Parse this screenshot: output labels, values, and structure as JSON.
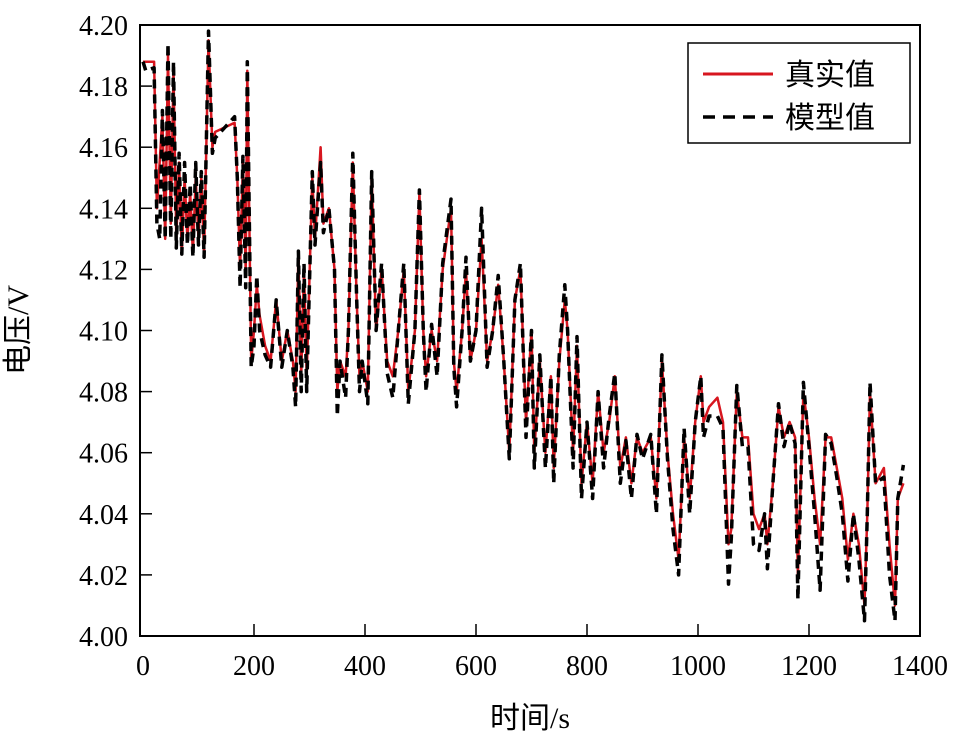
{
  "chart_data": {
    "type": "line",
    "title": "",
    "xlabel": "时间/s",
    "ylabel": "电压/V",
    "xlim": [
      0,
      1400
    ],
    "ylim": [
      4.0,
      4.2
    ],
    "xticks": [
      "0",
      "200",
      "400",
      "600",
      "800",
      "1000",
      "1200",
      "1400"
    ],
    "yticks": [
      "4.00",
      "4.02",
      "4.04",
      "4.06",
      "4.08",
      "4.10",
      "4.12",
      "4.14",
      "4.16",
      "4.18",
      "4.20"
    ],
    "grid": false,
    "legend_position": "top-right",
    "series": [
      {
        "name": "真实值",
        "color": "#d7161f",
        "style": "solid",
        "x": [
          0,
          20,
          25,
          35,
          40,
          45,
          50,
          55,
          60,
          65,
          70,
          75,
          80,
          85,
          90,
          95,
          100,
          105,
          110,
          118,
          125,
          130,
          165,
          170,
          175,
          180,
          185,
          188,
          195,
          200,
          205,
          210,
          220,
          230,
          240,
          250,
          260,
          270,
          275,
          280,
          285,
          290,
          295,
          305,
          310,
          320,
          325,
          335,
          345,
          350,
          355,
          365,
          370,
          378,
          385,
          390,
          395,
          405,
          412,
          420,
          430,
          440,
          450,
          460,
          470,
          478,
          490,
          498,
          505,
          510,
          520,
          530,
          540,
          555,
          560,
          565,
          575,
          582,
          590,
          600,
          610,
          620,
          630,
          640,
          650,
          660,
          670,
          680,
          690,
          700,
          705,
          715,
          725,
          735,
          740,
          750,
          760,
          765,
          775,
          782,
          790,
          800,
          810,
          820,
          830,
          840,
          850,
          860,
          870,
          880,
          890,
          900,
          915,
          925,
          935,
          945,
          955,
          965,
          975,
          985,
          995,
          1005,
          1010,
          1020,
          1035,
          1045,
          1055,
          1060,
          1070,
          1080,
          1090,
          1100,
          1110,
          1120,
          1125,
          1135,
          1145,
          1155,
          1165,
          1175,
          1180,
          1190,
          1200,
          1210,
          1220,
          1230,
          1240,
          1250,
          1260,
          1270,
          1280,
          1290,
          1300,
          1305,
          1310,
          1320,
          1335,
          1345,
          1355,
          1360,
          1370
        ],
        "y": [
          4.188,
          4.188,
          4.14,
          4.17,
          4.13,
          4.19,
          4.135,
          4.185,
          4.13,
          4.155,
          4.125,
          4.15,
          4.13,
          4.145,
          4.125,
          4.15,
          4.13,
          4.15,
          4.125,
          4.195,
          4.16,
          4.165,
          4.168,
          4.15,
          4.12,
          4.155,
          4.12,
          4.185,
          4.09,
          4.1,
          4.115,
          4.105,
          4.095,
          4.09,
          4.11,
          4.09,
          4.1,
          4.09,
          4.08,
          4.125,
          4.085,
          4.12,
          4.085,
          4.15,
          4.13,
          4.16,
          4.135,
          4.14,
          4.12,
          4.08,
          4.09,
          4.085,
          4.1,
          4.155,
          4.11,
          4.085,
          4.09,
          4.08,
          4.15,
          4.1,
          4.12,
          4.09,
          4.085,
          4.1,
          4.12,
          4.08,
          4.1,
          4.145,
          4.1,
          4.085,
          4.1,
          4.09,
          4.12,
          4.14,
          4.09,
          4.08,
          4.1,
          4.12,
          4.09,
          4.1,
          4.13,
          4.09,
          4.1,
          4.115,
          4.09,
          4.06,
          4.11,
          4.12,
          4.07,
          4.1,
          4.06,
          4.09,
          4.06,
          4.085,
          4.055,
          4.09,
          4.11,
          4.1,
          4.06,
          4.095,
          4.05,
          4.07,
          4.05,
          4.08,
          4.06,
          4.07,
          4.085,
          4.055,
          4.065,
          4.05,
          4.065,
          4.06,
          4.065,
          4.045,
          4.09,
          4.06,
          4.04,
          4.025,
          4.065,
          4.045,
          4.07,
          4.085,
          4.07,
          4.075,
          4.078,
          4.07,
          4.03,
          4.035,
          4.08,
          4.065,
          4.065,
          4.04,
          4.035,
          4.04,
          4.03,
          4.05,
          4.075,
          4.065,
          4.07,
          4.065,
          4.02,
          4.08,
          4.065,
          4.045,
          4.03,
          4.065,
          4.065,
          4.055,
          4.045,
          4.025,
          4.04,
          4.03,
          4.01,
          4.04,
          4.08,
          4.05,
          4.055,
          4.03,
          4.01,
          4.045,
          4.05
        ]
      },
      {
        "name": "模型值",
        "color": "#000000",
        "style": "dashed",
        "x": [
          0,
          5,
          20,
          25,
          30,
          35,
          40,
          45,
          50,
          55,
          60,
          65,
          70,
          75,
          80,
          85,
          90,
          95,
          100,
          105,
          110,
          118,
          125,
          130,
          165,
          170,
          175,
          180,
          185,
          188,
          195,
          200,
          205,
          210,
          220,
          230,
          240,
          250,
          260,
          270,
          275,
          280,
          285,
          290,
          295,
          305,
          310,
          320,
          325,
          335,
          345,
          350,
          355,
          365,
          370,
          378,
          385,
          390,
          395,
          405,
          412,
          420,
          430,
          440,
          450,
          460,
          470,
          478,
          490,
          498,
          505,
          510,
          520,
          530,
          540,
          555,
          560,
          565,
          575,
          582,
          590,
          600,
          610,
          620,
          630,
          640,
          650,
          660,
          670,
          680,
          690,
          700,
          705,
          715,
          725,
          735,
          740,
          750,
          760,
          765,
          775,
          782,
          790,
          800,
          810,
          820,
          830,
          840,
          850,
          860,
          870,
          880,
          890,
          900,
          915,
          925,
          935,
          945,
          955,
          965,
          975,
          985,
          995,
          1005,
          1010,
          1020,
          1035,
          1045,
          1055,
          1060,
          1070,
          1080,
          1090,
          1100,
          1110,
          1120,
          1125,
          1135,
          1145,
          1155,
          1165,
          1175,
          1180,
          1190,
          1200,
          1210,
          1220,
          1230,
          1240,
          1250,
          1260,
          1270,
          1280,
          1290,
          1300,
          1305,
          1310,
          1320,
          1335,
          1345,
          1355,
          1360,
          1370
        ],
        "y": [
          4.188,
          4.185,
          4.186,
          4.135,
          4.13,
          4.172,
          4.13,
          4.194,
          4.13,
          4.188,
          4.127,
          4.158,
          4.125,
          4.155,
          4.128,
          4.148,
          4.124,
          4.155,
          4.128,
          4.152,
          4.124,
          4.198,
          4.158,
          4.163,
          4.17,
          4.15,
          4.114,
          4.157,
          4.114,
          4.188,
          4.088,
          4.095,
          4.118,
          4.1,
          4.092,
          4.088,
          4.11,
          4.088,
          4.1,
          4.088,
          4.075,
          4.126,
          4.08,
          4.122,
          4.08,
          4.152,
          4.128,
          4.155,
          4.132,
          4.14,
          4.12,
          4.072,
          4.09,
          4.078,
          4.1,
          4.158,
          4.11,
          4.08,
          4.09,
          4.076,
          4.152,
          4.1,
          4.122,
          4.086,
          4.078,
          4.1,
          4.122,
          4.076,
          4.1,
          4.146,
          4.1,
          4.08,
          4.102,
          4.085,
          4.122,
          4.143,
          4.088,
          4.075,
          4.1,
          4.124,
          4.09,
          4.1,
          4.14,
          4.088,
          4.1,
          4.118,
          4.09,
          4.058,
          4.11,
          4.122,
          4.065,
          4.1,
          4.055,
          4.092,
          4.055,
          4.085,
          4.05,
          4.092,
          4.115,
          4.1,
          4.055,
          4.098,
          4.045,
          4.07,
          4.045,
          4.08,
          4.055,
          4.072,
          4.086,
          4.05,
          4.064,
          4.045,
          4.066,
          4.058,
          4.066,
          4.04,
          4.092,
          4.058,
          4.035,
          4.02,
          4.068,
          4.04,
          4.07,
          4.085,
          4.065,
          4.072,
          4.072,
          4.068,
          4.017,
          4.032,
          4.082,
          4.062,
          4.062,
          4.03,
          4.028,
          4.04,
          4.022,
          4.05,
          4.076,
          4.062,
          4.07,
          4.063,
          4.012,
          4.083,
          4.062,
          4.04,
          4.015,
          4.066,
          4.063,
          4.052,
          4.04,
          4.018,
          4.04,
          4.025,
          4.005,
          4.04,
          4.083,
          4.05,
          4.052,
          4.02,
          4.005,
          4.045,
          4.056
        ]
      }
    ]
  }
}
